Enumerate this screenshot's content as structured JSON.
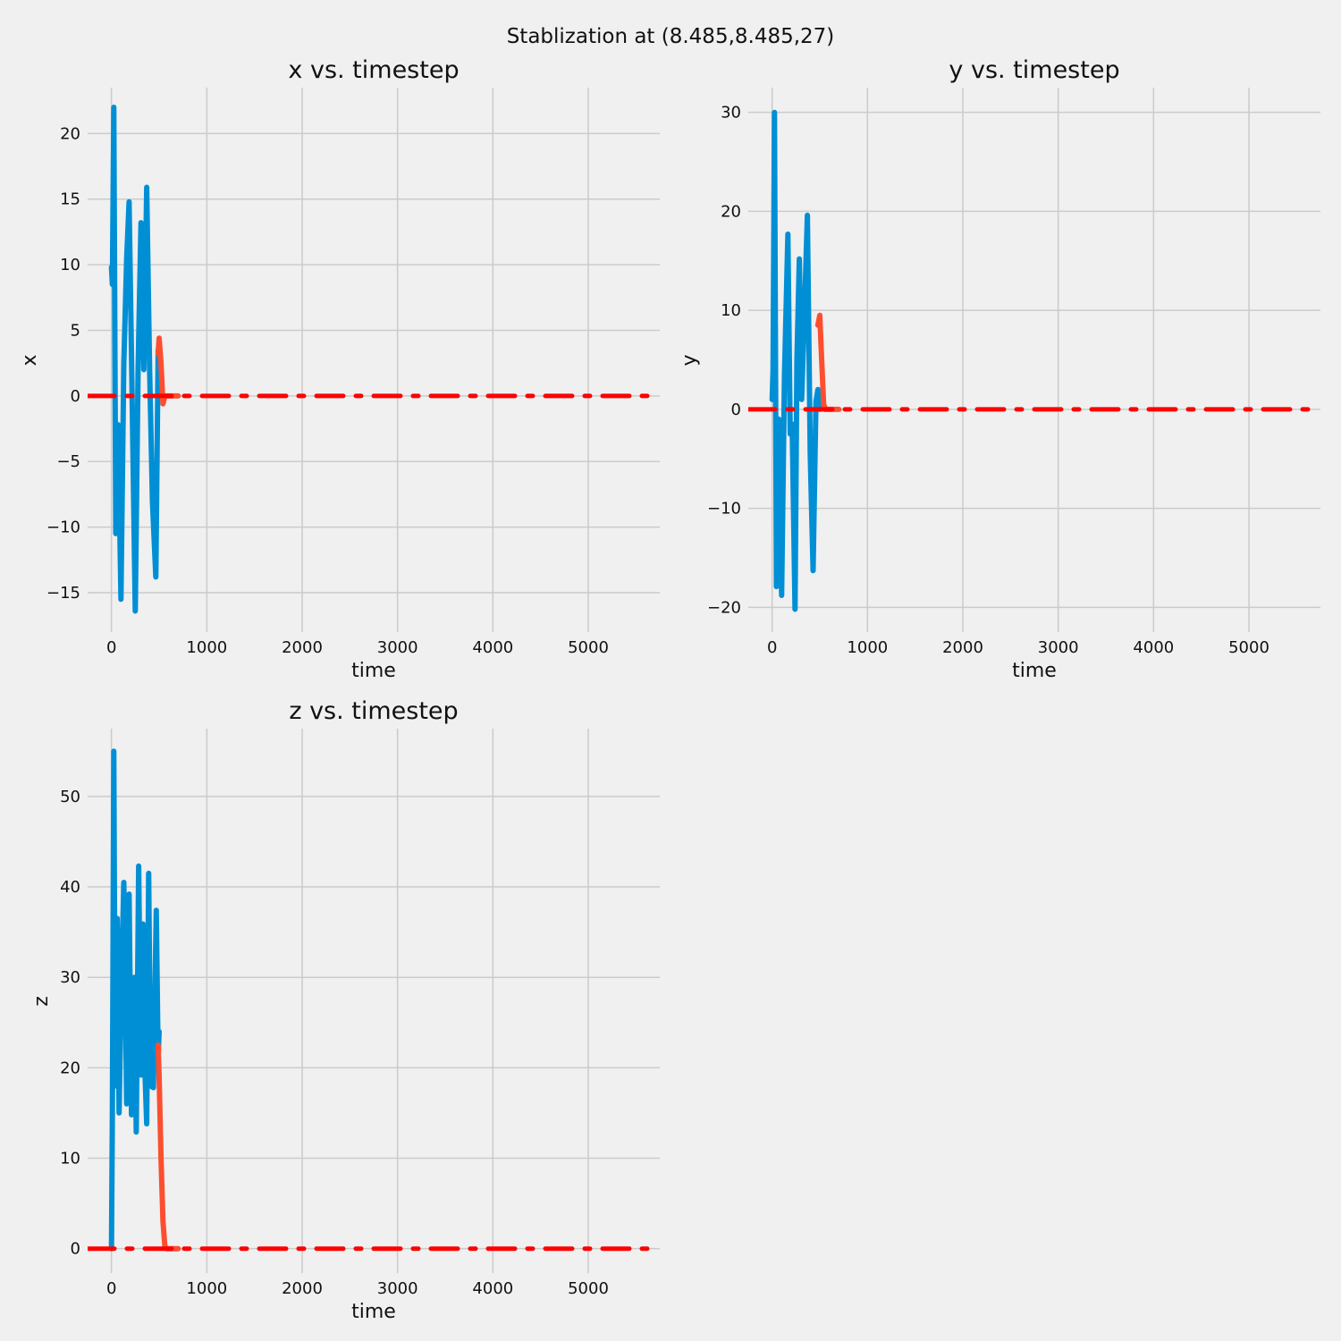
{
  "suptitle": "Stablization at (8.485,8.485,27)",
  "colors": {
    "background": "#f0f0f0",
    "grid": "#cbcbcb",
    "trajectory": "#008fd5",
    "controlled": "#fc4f30",
    "reference": "#ff0000"
  },
  "chart_data": [
    {
      "type": "line",
      "title": "x vs. timestep",
      "xlabel": "time",
      "ylabel": "x",
      "xlim": [
        -250,
        5750
      ],
      "ylim": [
        -18,
        23.5
      ],
      "xticks": [
        0,
        1000,
        2000,
        3000,
        4000,
        5000
      ],
      "xtick_labels": [
        "0",
        "1000",
        "2000",
        "3000",
        "4000",
        "5000"
      ],
      "yticks": [
        -15,
        -10,
        -5,
        0,
        5,
        10,
        15,
        20
      ],
      "ytick_labels": [
        "−15",
        "−10",
        "−5",
        "0",
        "5",
        "10",
        "15",
        "20"
      ],
      "grid": true,
      "series": [
        {
          "style": "solid",
          "color": "#008fd5",
          "x": [
            0,
            10,
            25,
            45,
            70,
            100,
            130,
            160,
            185,
            210,
            250,
            280,
            310,
            340,
            370,
            400,
            430,
            465,
            490,
            500
          ],
          "y": [
            9.8,
            8.5,
            22,
            -10.5,
            -2.2,
            -15.5,
            2.5,
            10.5,
            14.8,
            3,
            -16.4,
            2.2,
            13.2,
            2,
            15.9,
            2.2,
            -8,
            -13.8,
            3.5,
            1.5
          ]
        },
        {
          "style": "solid",
          "color": "#fc4f30",
          "x": [
            490,
            500,
            520,
            540,
            560,
            600,
            700
          ],
          "y": [
            3.2,
            4.4,
            2.5,
            -0.6,
            0,
            0,
            0
          ]
        },
        {
          "style": "dashdot",
          "color": "#ff0000",
          "x": [
            -250,
            5750
          ],
          "y": [
            0,
            0
          ]
        }
      ]
    },
    {
      "type": "line",
      "title": "y vs. timestep",
      "xlabel": "time",
      "ylabel": "y",
      "xlim": [
        -250,
        5750
      ],
      "ylim": [
        -22.5,
        32.5
      ],
      "xticks": [
        0,
        1000,
        2000,
        3000,
        4000,
        5000
      ],
      "xtick_labels": [
        "0",
        "1000",
        "2000",
        "3000",
        "4000",
        "5000"
      ],
      "yticks": [
        -20,
        -10,
        0,
        10,
        20,
        30
      ],
      "ytick_labels": [
        "−20",
        "−10",
        "0",
        "10",
        "20",
        "30"
      ],
      "grid": true,
      "series": [
        {
          "style": "solid",
          "color": "#008fd5",
          "x": [
            0,
            10,
            25,
            45,
            70,
            100,
            130,
            165,
            190,
            210,
            240,
            260,
            285,
            310,
            340,
            370,
            400,
            430,
            460,
            480,
            500
          ],
          "y": [
            1,
            4,
            30,
            -17.9,
            -1,
            -18.8,
            3.5,
            17.7,
            -2.5,
            -1.5,
            -20.2,
            5,
            15.2,
            1,
            10,
            19.6,
            -4.5,
            -16.3,
            0.8,
            2,
            0
          ]
        },
        {
          "style": "solid",
          "color": "#fc4f30",
          "x": [
            480,
            500,
            520,
            540,
            560,
            600,
            700
          ],
          "y": [
            8.5,
            9.5,
            5,
            0.5,
            0,
            0,
            0
          ]
        },
        {
          "style": "dashdot",
          "color": "#ff0000",
          "x": [
            -250,
            5750
          ],
          "y": [
            0,
            0
          ]
        }
      ]
    },
    {
      "type": "line",
      "title": "z vs. timestep",
      "xlabel": "time",
      "ylabel": "z",
      "xlim": [
        -250,
        5750
      ],
      "ylim": [
        -2.7,
        57.5
      ],
      "xticks": [
        0,
        1000,
        2000,
        3000,
        4000,
        5000
      ],
      "xtick_labels": [
        "0",
        "1000",
        "2000",
        "3000",
        "4000",
        "5000"
      ],
      "yticks": [
        0,
        10,
        20,
        30,
        40,
        50
      ],
      "ytick_labels": [
        "0",
        "10",
        "20",
        "30",
        "40",
        "50"
      ],
      "grid": true,
      "series": [
        {
          "style": "solid",
          "color": "#008fd5",
          "x": [
            0,
            10,
            25,
            40,
            60,
            80,
            100,
            130,
            160,
            185,
            210,
            240,
            260,
            285,
            310,
            330,
            350,
            370,
            390,
            410,
            440,
            470,
            490,
            500
          ],
          "y": [
            0,
            15,
            55,
            18,
            36.5,
            15,
            27,
            40.5,
            16,
            39.2,
            14.8,
            30,
            12.9,
            42.3,
            19.2,
            35.9,
            20,
            13.8,
            41.5,
            18,
            17.8,
            37.4,
            21,
            24
          ]
        },
        {
          "style": "solid",
          "color": "#fc4f30",
          "x": [
            490,
            500,
            520,
            540,
            560,
            580,
            600,
            700
          ],
          "y": [
            22.5,
            19,
            10,
            3,
            0.3,
            0,
            0,
            0
          ]
        },
        {
          "style": "dashdot",
          "color": "#ff0000",
          "x": [
            -250,
            5750
          ],
          "y": [
            0,
            0
          ]
        }
      ]
    }
  ]
}
